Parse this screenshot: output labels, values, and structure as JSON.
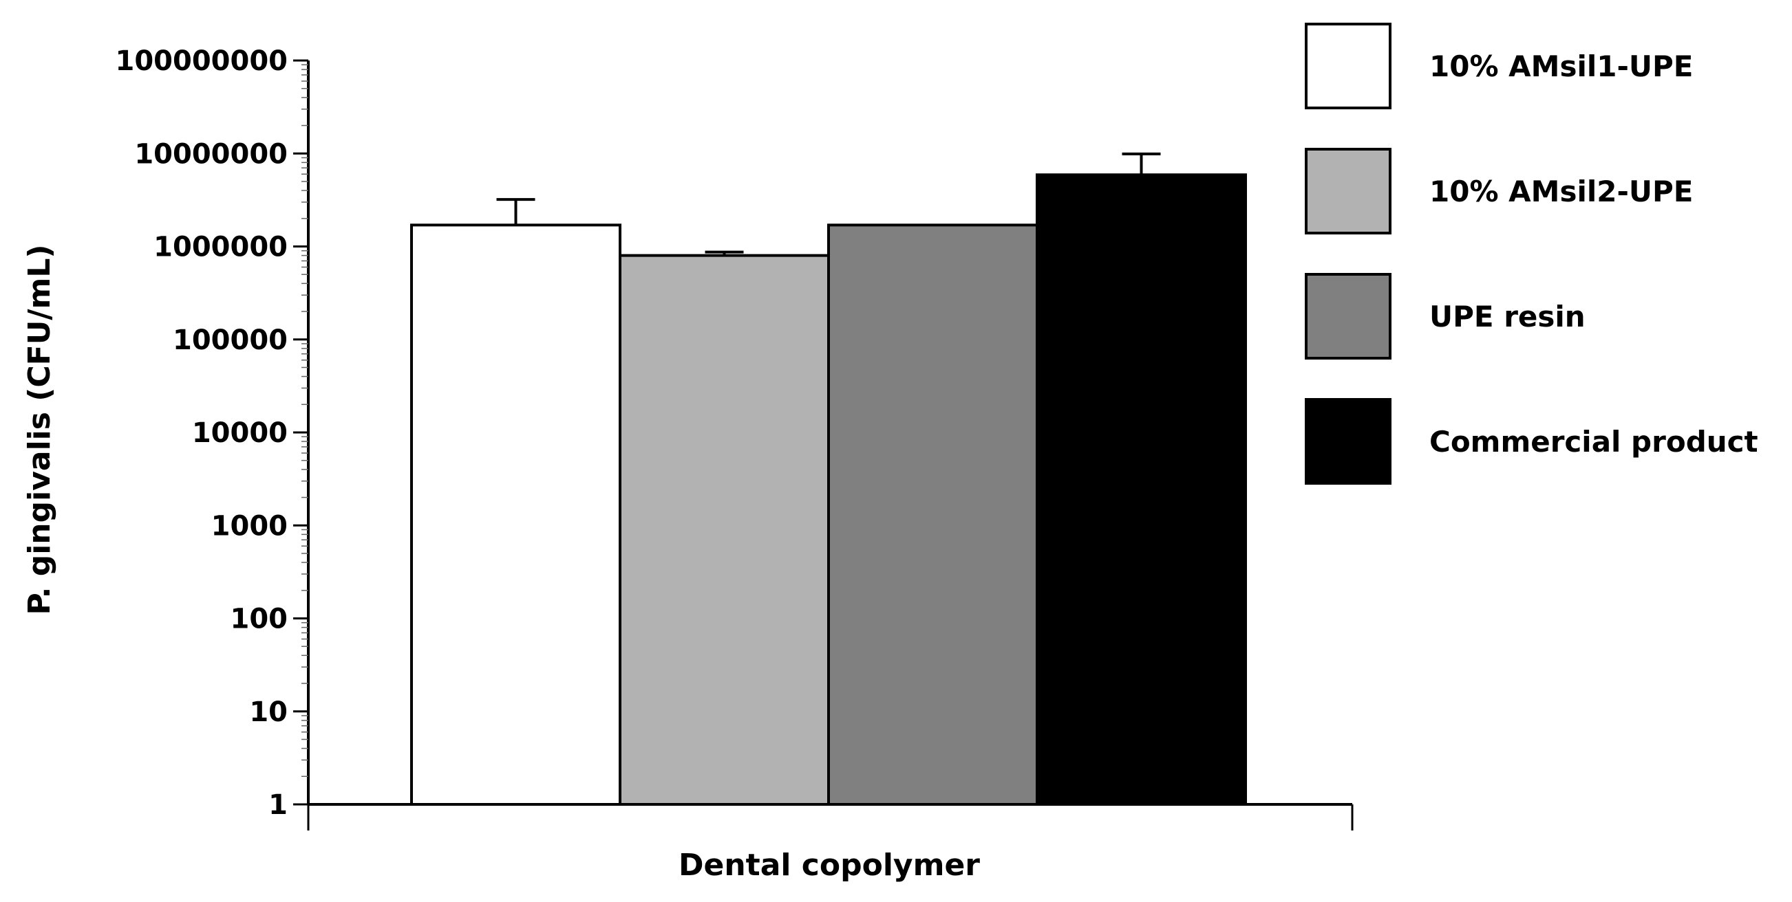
{
  "chart_data": {
    "type": "bar",
    "title": "",
    "xlabel": "Dental copolymer",
    "ylabel": "P. gingivalis (CFU/mL)",
    "yscale": "log",
    "ylim": [
      1,
      100000000
    ],
    "ytick_labels": [
      "1",
      "10",
      "100",
      "1000",
      "10000",
      "100000",
      "1000000",
      "10000000",
      "100000000"
    ],
    "grid": false,
    "legend_position": "right",
    "categories": [
      "Dental copolymer"
    ],
    "series": [
      {
        "name": "10% AMsil1-UPE",
        "value": 1700000,
        "error": 1500000,
        "color": "#ffffff"
      },
      {
        "name": "10% AMsil2-UPE",
        "value": 800000,
        "error": 70000,
        "color": "#b2b2b2"
      },
      {
        "name": "UPE resin",
        "value": 1700000,
        "error": 0,
        "color": "#808080"
      },
      {
        "name": "Commercial product",
        "value": 5900000,
        "error": 4000000,
        "color": "#000000"
      }
    ]
  }
}
